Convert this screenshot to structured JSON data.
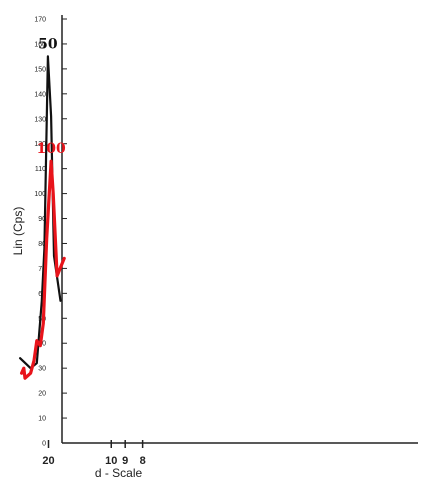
{
  "chart_data": {
    "type": "line",
    "xlabel": "d - Scale",
    "ylabel": "Lin (Cps)",
    "ylim": [
      0,
      170
    ],
    "y_ticks": [
      0,
      10,
      20,
      30,
      40,
      50,
      60,
      70,
      80,
      90,
      100,
      110,
      120,
      130,
      140,
      150,
      160,
      170
    ],
    "x_axis": "reciprocal d-spacing",
    "x_ticks": [
      {
        "value": 20,
        "label": "20"
      },
      {
        "value": 10,
        "label": "10"
      },
      {
        "value": 9,
        "label": "9"
      },
      {
        "value": 8,
        "label": "8"
      }
    ],
    "grid": false,
    "series": [
      {
        "name": "50",
        "color": "#111111",
        "points": [
          [
            16.8,
            57
          ],
          [
            18.4,
            75
          ],
          [
            19.2,
            131
          ],
          [
            20.2,
            155
          ],
          [
            21.4,
            78
          ],
          [
            22.4,
            57
          ],
          [
            24.6,
            32
          ],
          [
            28.0,
            30
          ],
          [
            36.5,
            34
          ]
        ]
      },
      {
        "name": "100",
        "color": "#e8141b",
        "points": [
          [
            16.0,
            74
          ],
          [
            17.6,
            67
          ],
          [
            18.6,
            100
          ],
          [
            19.2,
            113
          ],
          [
            20.6,
            82
          ],
          [
            21.8,
            48
          ],
          [
            23.0,
            39
          ],
          [
            24.6,
            41
          ],
          [
            26.0,
            33
          ],
          [
            28.0,
            28
          ],
          [
            32.0,
            26
          ],
          [
            33.0,
            30
          ],
          [
            35.0,
            28
          ]
        ]
      }
    ]
  }
}
